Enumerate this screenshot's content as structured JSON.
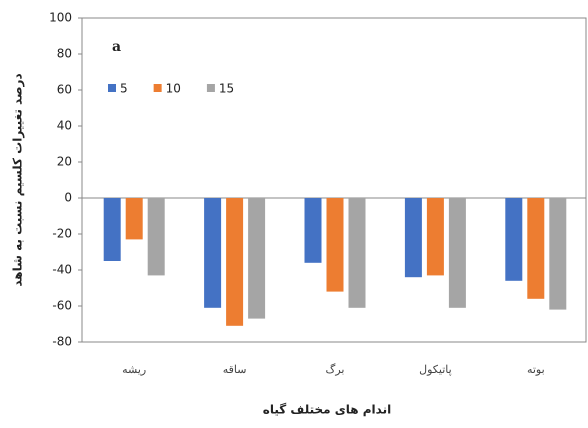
{
  "chart_data": {
    "type": "bar",
    "panel_label": "a",
    "x_label": "اندام های مختلف گیاه",
    "y_label": "درصد تغییرات کلسیم نسبت به شاهد",
    "categories": [
      "ریشه",
      "ساقه",
      "برگ",
      "پاتیکول",
      "بوته"
    ],
    "series": [
      {
        "name": "5",
        "color": "#4472c4",
        "values": [
          -35,
          -61,
          -36,
          -44,
          -46
        ]
      },
      {
        "name": "10",
        "color": "#ed7d31",
        "values": [
          -23,
          -71,
          -52,
          -43,
          -56
        ]
      },
      {
        "name": "15",
        "color": "#a5a5a5",
        "values": [
          -43,
          -67,
          -61,
          -61,
          -62
        ]
      }
    ],
    "ylim": [
      -80,
      100
    ],
    "yticks": [
      -80,
      -60,
      -40,
      -20,
      0,
      20,
      40,
      60,
      80,
      100
    ],
    "grid": false
  }
}
